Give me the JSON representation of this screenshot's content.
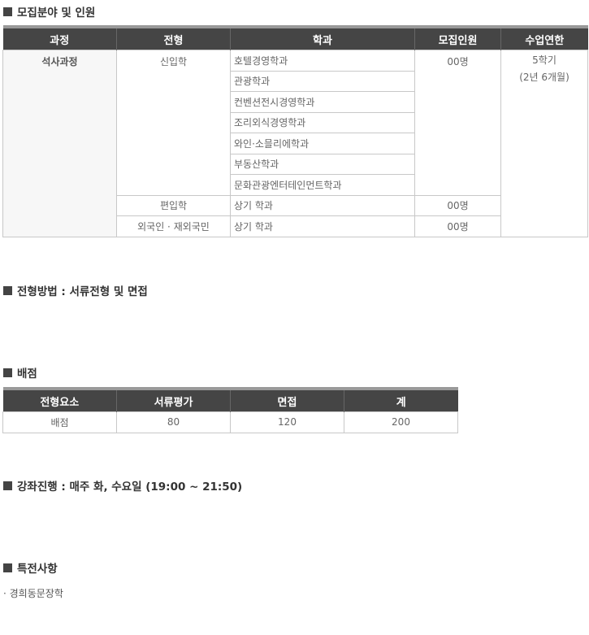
{
  "sections": {
    "recruit": "모집분야 및 인원",
    "method": "전형방법 : 서류전형 및 면접",
    "score": "배점",
    "lecture": "강좌진행 : 매주 화, 수요일 (19:00 ~ 21:50)",
    "benefit": "특전사항"
  },
  "recruit_table": {
    "headers": [
      "과정",
      "전형",
      "학과",
      "모집인원",
      "수업연한"
    ],
    "course": "석사과정",
    "duration_line1": "5학기",
    "duration_line2": "(2년 6개월)",
    "groups": [
      {
        "type": "신입학",
        "count": "00명",
        "departments": [
          "호텔경영학과",
          "관광학과",
          "컨벤션전시경영학과",
          "조리외식경영학과",
          "와인·소믈리에학과",
          "부동산학과",
          "문화관광엔터테인먼트학과"
        ]
      },
      {
        "type": "편입학",
        "count": "00명",
        "departments": [
          "상기 학과"
        ]
      },
      {
        "type": "외국인 · 재외국민",
        "count": "00명",
        "departments": [
          "상기 학과"
        ]
      }
    ]
  },
  "score_table": {
    "headers": [
      "전형요소",
      "서류평가",
      "면접",
      "계"
    ],
    "row": [
      "배점",
      "80",
      "120",
      "200"
    ]
  },
  "benefits": [
    "· 경희동문장학"
  ]
}
